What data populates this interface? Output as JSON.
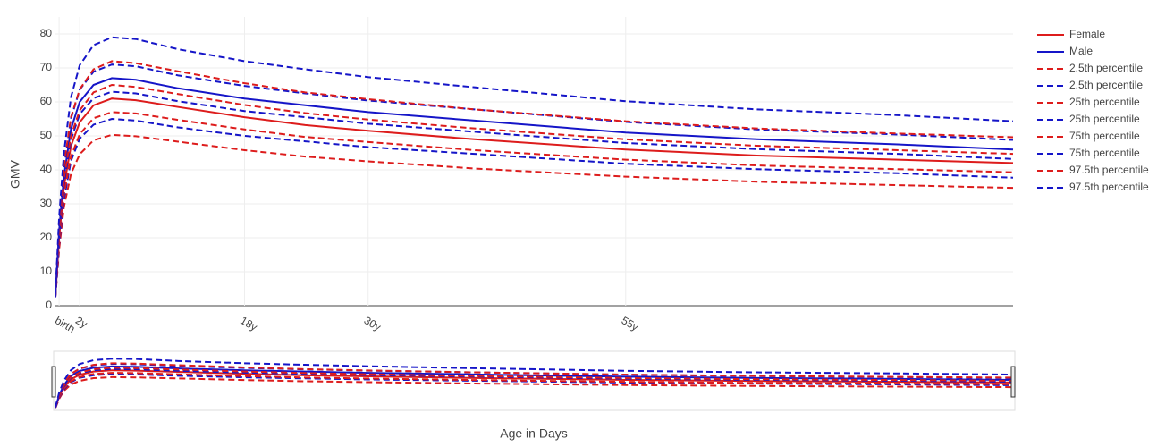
{
  "chart_data": {
    "type": "line",
    "x_label": "Age in Days",
    "y_label": "GMV",
    "x": [
      150,
      280,
      450,
      700,
      1010,
      1500,
      2150,
      3000,
      4500,
      6850,
      9000,
      11230,
      15000,
      20355,
      25000,
      30000,
      34080
    ],
    "xlim": [
      150,
      34080
    ],
    "xticks": [
      {
        "value": 280,
        "label": "birth"
      },
      {
        "value": 1010,
        "label": "2y"
      },
      {
        "value": 6850,
        "label": "18y"
      },
      {
        "value": 11230,
        "label": "30y"
      },
      {
        "value": 20355,
        "label": "55y"
      }
    ],
    "ylim": [
      0,
      85
    ],
    "yticks": [
      0,
      10,
      20,
      30,
      40,
      50,
      60,
      70,
      80
    ],
    "grid": true,
    "legend": "right",
    "range_slider": true,
    "series": [
      {
        "name": "Female",
        "color": "#dd1c1c",
        "dash": false,
        "values": [
          3,
          20,
          35,
          47,
          54,
          59,
          61,
          60.5,
          58.5,
          55.5,
          53.2,
          51.5,
          49,
          46,
          44.2,
          43,
          42
        ]
      },
      {
        "name": "Male",
        "color": "#1515c8",
        "dash": false,
        "values": [
          3,
          22,
          38,
          52,
          60,
          65,
          67,
          66.5,
          64,
          61,
          59,
          57,
          54.5,
          51,
          49,
          47.5,
          46
        ]
      },
      {
        "name": "2.5th percentile",
        "color": "#dd1c1c",
        "dash": true,
        "values": [
          2.5,
          16.5,
          29,
          38.8,
          44.6,
          48.7,
          50.3,
          49.9,
          48.3,
          45.8,
          43.9,
          42.5,
          40.4,
          38,
          36.5,
          35.5,
          34.7
        ]
      },
      {
        "name": "2.5th percentile",
        "color": "#1515c8",
        "dash": true,
        "values": [
          2.5,
          18,
          31.2,
          42.6,
          49.2,
          53.3,
          55,
          54.5,
          52.5,
          50,
          48.4,
          46.7,
          44.7,
          41.8,
          40.2,
          39,
          37.7
        ]
      },
      {
        "name": "25th percentile",
        "color": "#dd1c1c",
        "dash": true,
        "values": [
          2.8,
          18.7,
          32.7,
          43.9,
          50.5,
          55.2,
          57,
          56.6,
          54.7,
          51.9,
          49.7,
          48.2,
          45.8,
          43,
          41.3,
          40.2,
          39.3
        ]
      },
      {
        "name": "25th percentile",
        "color": "#1515c8",
        "dash": true,
        "values": [
          2.8,
          20.7,
          35.7,
          48.9,
          56.4,
          61.1,
          63,
          62.5,
          60.2,
          57.3,
          55.5,
          53.6,
          51.2,
          47.9,
          46.1,
          44.7,
          43.2
        ]
      },
      {
        "name": "75th percentile",
        "color": "#dd1c1c",
        "dash": true,
        "values": [
          3.2,
          21.3,
          37.3,
          50,
          57.5,
          62.8,
          65,
          64.4,
          62.3,
          59.1,
          56.7,
          54.8,
          52.2,
          49,
          47.1,
          45.8,
          44.7
        ]
      },
      {
        "name": "75th percentile",
        "color": "#1515c8",
        "dash": true,
        "values": [
          3.2,
          23.3,
          40.3,
          55.1,
          63.6,
          68.9,
          71,
          70.5,
          67.8,
          64.7,
          62.5,
          60.4,
          57.8,
          54.1,
          51.9,
          50.4,
          48.8
        ]
      },
      {
        "name": "97.5th percentile",
        "color": "#dd1c1c",
        "dash": true,
        "values": [
          3.5,
          23.6,
          41.3,
          55.5,
          63.7,
          69.6,
          72,
          71.4,
          69,
          65.5,
          62.8,
          60.8,
          57.8,
          54.3,
          52.2,
          50.7,
          49.6
        ]
      },
      {
        "name": "97.5th percentile",
        "color": "#1515c8",
        "dash": true,
        "values": [
          3.5,
          26,
          44.8,
          61.4,
          70.8,
          76.7,
          79,
          78.5,
          75.5,
          72,
          69.6,
          67.3,
          64.3,
          60.2,
          57.8,
          56.1,
          54.3
        ]
      }
    ]
  }
}
